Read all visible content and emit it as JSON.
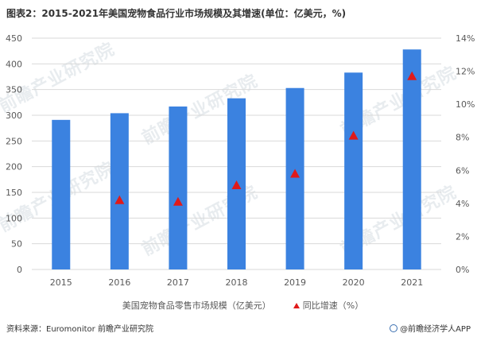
{
  "title": "图表2：2015-2021年美国宠物食品行业市场规模及其增速(单位：亿美元，%)",
  "watermark": "前瞻产业研究院",
  "legend": {
    "bar_label": "美国宠物食品零售市场规模（亿美元）",
    "marker_label": "同比增速（%）"
  },
  "footer": {
    "source": "资料来源：Euromonitor 前瞻产业研究院",
    "brand": "@前瞻经济学人APP"
  },
  "colors": {
    "bar": "#3b82e0",
    "marker": "#e01a1a",
    "grid": "#d9d9d9"
  },
  "chart_data": {
    "type": "bar",
    "title": "图表2：2015-2021年美国宠物食品行业市场规模及其增速(单位：亿美元，%)",
    "categories": [
      "2015",
      "2016",
      "2017",
      "2018",
      "2019",
      "2020",
      "2021"
    ],
    "series": [
      {
        "name": "美国宠物食品零售市场规模（亿美元）",
        "type": "bar",
        "axis": "left",
        "values": [
          291,
          304,
          317,
          333,
          353,
          383,
          428
        ]
      },
      {
        "name": "同比增速（%）",
        "type": "scatter",
        "axis": "right",
        "values": [
          null,
          4.2,
          4.1,
          5.1,
          5.8,
          8.1,
          11.7
        ]
      }
    ],
    "ylim_left": [
      0,
      450
    ],
    "yticks_left": [
      "0",
      "50",
      "100",
      "150",
      "200",
      "250",
      "300",
      "350",
      "400",
      "450"
    ],
    "ylim_right": [
      0,
      14
    ],
    "yticks_right": [
      "0%",
      "2%",
      "4%",
      "6%",
      "8%",
      "10%",
      "12%",
      "14%"
    ],
    "grid": true,
    "legend_position": "bottom"
  }
}
